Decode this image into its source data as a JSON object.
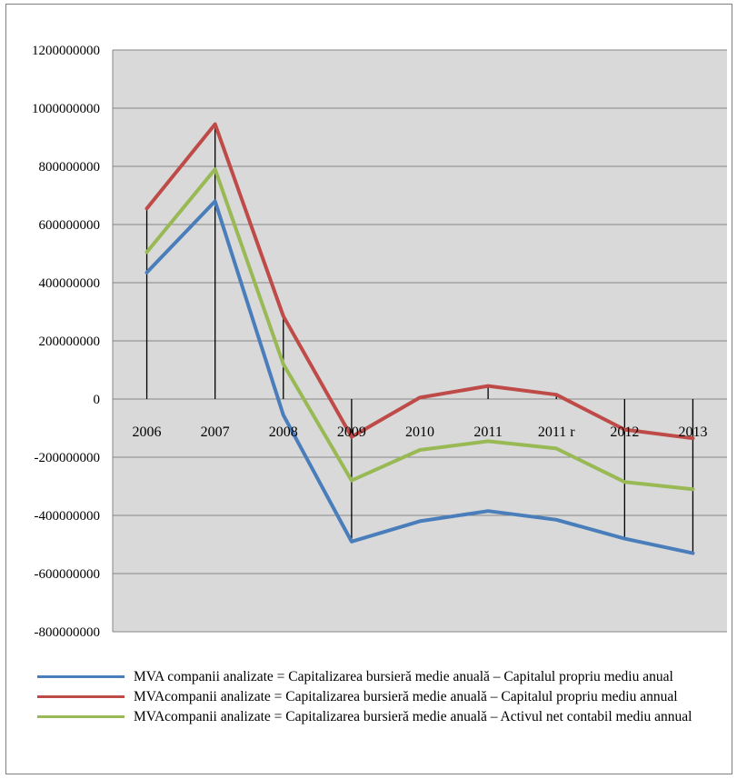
{
  "chart_data": {
    "type": "line",
    "categories": [
      "2006",
      "2007",
      "2008",
      "2009",
      "2010",
      "2011",
      "2011 r",
      "2012",
      "2013"
    ],
    "y_ticks": [
      "1200000000",
      "1000000000",
      "800000000",
      "600000000",
      "400000000",
      "200000000",
      "0",
      "-200000000",
      "-400000000",
      "-600000000",
      "-800000000"
    ],
    "ylim": [
      -800000000,
      1200000000
    ],
    "grid": true,
    "legend_position": "bottom",
    "drop_lines": true,
    "series": [
      {
        "name": "MVA companii analizate = Capitalizarea bursieră medie anuală – Capitalul propriu mediu anual",
        "color": "#4a7ebb",
        "values": [
          435000000,
          680000000,
          -55000000,
          -490000000,
          -420000000,
          -385000000,
          -415000000,
          -480000000,
          -530000000
        ]
      },
      {
        "name": "MVAcompanii analizate = Capitalizarea bursieră medie anuală – Capitalul propriu mediu annual",
        "color": "#be4b48",
        "values": [
          655000000,
          945000000,
          285000000,
          -130000000,
          5000000,
          45000000,
          15000000,
          -105000000,
          -135000000
        ]
      },
      {
        "name": "MVAcompanii analizate = Capitalizarea bursieră medie anuală – Activul net contabil mediu annual",
        "color": "#98b954",
        "values": [
          505000000,
          790000000,
          120000000,
          -280000000,
          -175000000,
          -145000000,
          -170000000,
          -285000000,
          -310000000
        ]
      }
    ]
  }
}
